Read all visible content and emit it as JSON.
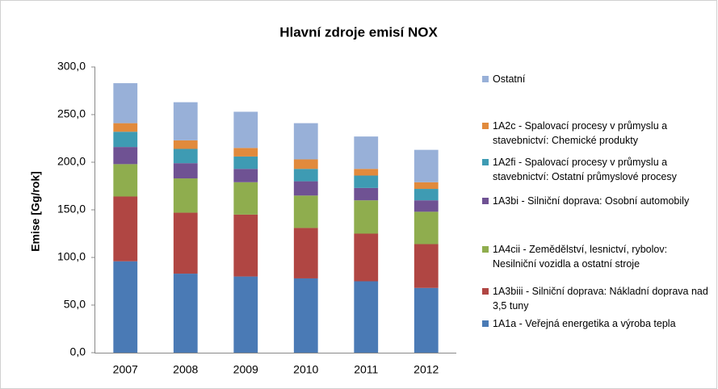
{
  "chart_data": {
    "type": "stacked_bar",
    "title": "Hlavní zdroje emisí NOX",
    "y_label": "Emise [Gg/rok]",
    "categories": [
      "2007",
      "2008",
      "2009",
      "2010",
      "2011",
      "2012"
    ],
    "ylim": [
      0,
      300
    ],
    "yticks": [
      {
        "value": 0,
        "label": "0,0"
      },
      {
        "value": 50,
        "label": "50,0"
      },
      {
        "value": 100,
        "label": "100,0"
      },
      {
        "value": 150,
        "label": "150,0"
      },
      {
        "value": 200,
        "label": "200,0"
      },
      {
        "value": 250,
        "label": "250,0"
      },
      {
        "value": 300,
        "label": "300,0"
      }
    ],
    "grid": false,
    "legend": "right",
    "series": [
      {
        "name": "1A1a - Veřejná energetika a výroba tepla",
        "color": "#4a7ab5",
        "values": [
          96,
          83,
          80,
          78,
          75,
          68
        ]
      },
      {
        "name": "1A3biii - Silniční doprava: Nákladní doprava nad 3,5 tuny",
        "color": "#b04643",
        "values": [
          68,
          64,
          65,
          53,
          50,
          46
        ]
      },
      {
        "name": "1A4cii - Zemědělství, lesnictví, rybolov: Nesilniční vozidla a ostatní stroje",
        "color": "#8fad4e",
        "values": [
          34,
          36,
          34,
          34,
          35,
          34
        ]
      },
      {
        "name": "1A3bi - Silniční doprava: Osobní automobily",
        "color": "#6f5293",
        "values": [
          18,
          16,
          14,
          15,
          13,
          12
        ]
      },
      {
        "name": "1A2fi - Spalovací procesy v průmyslu a stavebnictví: Ostatní průmyslové procesy",
        "color": "#3e9bb3",
        "values": [
          16,
          15,
          13,
          13,
          13,
          12
        ]
      },
      {
        "name": "1A2c - Spalovací procesy v průmyslu a stavebnictví: Chemické produkty",
        "color": "#e18a3c",
        "values": [
          9,
          9,
          9,
          10,
          7,
          7
        ]
      },
      {
        "name": "Ostatní",
        "color": "#98b0d8",
        "values": [
          42,
          40,
          38,
          38,
          34,
          34
        ]
      }
    ]
  }
}
